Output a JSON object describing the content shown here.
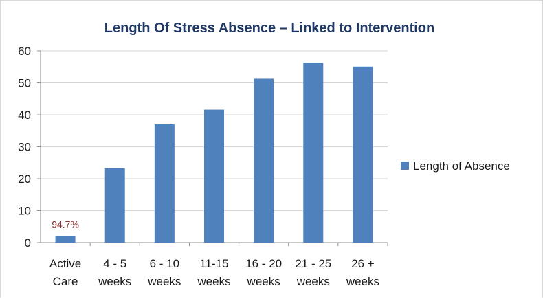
{
  "chart_data": {
    "type": "bar",
    "title": "Length Of Stress Absence – Linked to  Intervention",
    "xlabel": "",
    "ylabel": "",
    "ylim": [
      0,
      60
    ],
    "yticks": [
      "0",
      "10",
      "20",
      "30",
      "40",
      "50",
      "60"
    ],
    "grid": true,
    "legend_position": "right",
    "categories": [
      [
        "Active",
        "Care"
      ],
      [
        "4 - 5",
        "weeks"
      ],
      [
        "6 - 10",
        "weeks"
      ],
      [
        "11-15",
        "weeks"
      ],
      [
        "16 - 20",
        "weeks"
      ],
      [
        "21 - 25",
        "weeks"
      ],
      [
        "26 +",
        "weeks"
      ]
    ],
    "series": [
      {
        "name": "Length of Absence",
        "color": "#4f81bd",
        "values": [
          2,
          23.3,
          37,
          41.6,
          51.3,
          56.3,
          55.1
        ]
      }
    ],
    "annotations": [
      {
        "category_index": 0,
        "text": "94.7%"
      }
    ]
  }
}
